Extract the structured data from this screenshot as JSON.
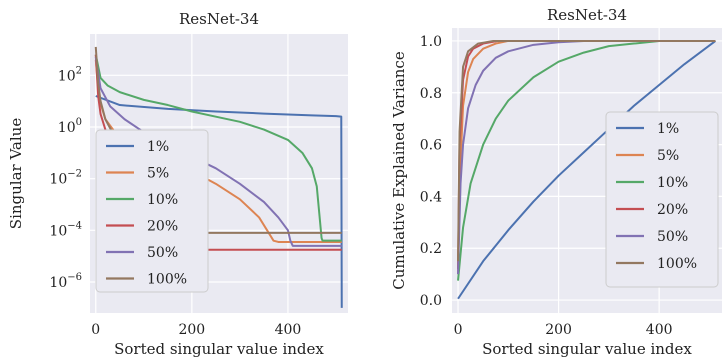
{
  "chart_data": [
    {
      "type": "line",
      "title": "ResNet-34",
      "xlabel": "Sorted singular value index",
      "ylabel": "Singular Value",
      "xlim": [
        -12,
        525
      ],
      "yscale": "log",
      "ylim_log10": [
        -7.2,
        3.6
      ],
      "xticks": [
        0,
        200,
        400
      ],
      "yticks": [
        {
          "base": "10",
          "exp": "2",
          "value": 2
        },
        {
          "base": "10",
          "exp": "0",
          "value": 0
        },
        {
          "base": "10",
          "exp": "−2",
          "value": -2
        },
        {
          "base": "10",
          "exp": "−4",
          "value": -4
        },
        {
          "base": "10",
          "exp": "−6",
          "value": -6
        }
      ],
      "grid": true,
      "legend_placement": "lower-left",
      "series": [
        {
          "name": "1%",
          "color": "#4c72b0",
          "x": [
            0,
            50,
            150,
            250,
            350,
            450,
            500,
            511,
            512
          ],
          "log10_y": [
            1.2,
            0.85,
            0.7,
            0.6,
            0.52,
            0.45,
            0.42,
            0.4,
            -7.0
          ]
        },
        {
          "name": "5%",
          "color": "#dd8452",
          "x": [
            0,
            5,
            10,
            20,
            40,
            80,
            150,
            200,
            250,
            300,
            340,
            360,
            370,
            380,
            512
          ],
          "log10_y": [
            2.6,
            1.5,
            0.9,
            0.3,
            -0.2,
            -0.7,
            -1.3,
            -1.7,
            -2.2,
            -2.8,
            -3.5,
            -4.1,
            -4.4,
            -4.45,
            -4.45
          ]
        },
        {
          "name": "10%",
          "color": "#55a868",
          "x": [
            0,
            10,
            25,
            50,
            100,
            150,
            200,
            250,
            300,
            350,
            400,
            430,
            450,
            460,
            470,
            472,
            512
          ],
          "log10_y": [
            2.8,
            1.9,
            1.6,
            1.35,
            1.05,
            0.85,
            0.6,
            0.4,
            0.2,
            -0.1,
            -0.5,
            -1.0,
            -1.6,
            -2.3,
            -4.3,
            -4.4,
            -4.4
          ]
        },
        {
          "name": "20%",
          "color": "#c44e52",
          "x": [
            0,
            5,
            10,
            20,
            35,
            55,
            80,
            90,
            120,
            512
          ],
          "log10_y": [
            2.8,
            1.2,
            0.5,
            -0.1,
            -0.6,
            -1.5,
            -2.5,
            -4.75,
            -4.75,
            -4.75
          ]
        },
        {
          "name": "50%",
          "color": "#8172b3",
          "x": [
            0,
            10,
            30,
            60,
            100,
            150,
            200,
            250,
            300,
            350,
            380,
            400,
            405,
            410,
            420,
            512
          ],
          "log10_y": [
            2.7,
            1.5,
            0.8,
            0.3,
            -0.2,
            -0.7,
            -1.15,
            -1.6,
            -2.2,
            -2.9,
            -3.5,
            -4.0,
            -4.4,
            -4.6,
            -4.6,
            -4.6
          ]
        },
        {
          "name": "100%",
          "color": "#937860",
          "x": [
            0,
            5,
            10,
            20,
            40,
            60,
            80,
            100,
            105,
            115,
            512
          ],
          "log10_y": [
            3.1,
            1.7,
            1.0,
            0.3,
            -0.4,
            -1.3,
            -2.2,
            -3.0,
            -4.1,
            -4.1,
            -4.1
          ]
        }
      ]
    },
    {
      "type": "line",
      "title": "ResNet-34",
      "xlabel": "Sorted singular value index",
      "ylabel": "Cumulative Explained Variance",
      "xlim": [
        -12,
        525
      ],
      "ylim": [
        -0.05,
        1.05
      ],
      "xticks": [
        0,
        200,
        400
      ],
      "yticks": [
        0.0,
        0.2,
        0.4,
        0.6,
        0.8,
        1.0
      ],
      "grid": true,
      "legend_placement": "lower-right",
      "series": [
        {
          "name": "1%",
          "color": "#4c72b0",
          "x": [
            0,
            50,
            100,
            150,
            200,
            250,
            300,
            350,
            400,
            450,
            512
          ],
          "y": [
            0.005,
            0.15,
            0.27,
            0.38,
            0.48,
            0.57,
            0.66,
            0.75,
            0.83,
            0.91,
            1.0
          ]
        },
        {
          "name": "5%",
          "color": "#dd8452",
          "x": [
            0,
            3,
            10,
            20,
            30,
            50,
            75,
            100,
            150,
            512
          ],
          "y": [
            0.1,
            0.45,
            0.75,
            0.88,
            0.93,
            0.97,
            0.99,
            1.0,
            1.0,
            1.0
          ]
        },
        {
          "name": "10%",
          "color": "#55a868",
          "x": [
            0,
            10,
            25,
            50,
            75,
            100,
            150,
            200,
            250,
            300,
            350,
            400,
            450,
            512
          ],
          "y": [
            0.075,
            0.28,
            0.45,
            0.6,
            0.7,
            0.77,
            0.86,
            0.92,
            0.955,
            0.98,
            0.99,
            1.0,
            1.0,
            1.0
          ]
        },
        {
          "name": "20%",
          "color": "#c44e52",
          "x": [
            0,
            3,
            10,
            20,
            30,
            50,
            80,
            120,
            512
          ],
          "y": [
            0.12,
            0.6,
            0.85,
            0.94,
            0.97,
            0.99,
            1.0,
            1.0,
            1.0
          ]
        },
        {
          "name": "50%",
          "color": "#8172b3",
          "x": [
            0,
            5,
            10,
            20,
            35,
            50,
            75,
            100,
            150,
            200,
            250,
            512
          ],
          "y": [
            0.1,
            0.45,
            0.6,
            0.74,
            0.83,
            0.885,
            0.935,
            0.96,
            0.985,
            0.995,
            1.0,
            1.0
          ]
        },
        {
          "name": "100%",
          "color": "#937860",
          "x": [
            0,
            3,
            10,
            20,
            40,
            70,
            512
          ],
          "y": [
            0.15,
            0.65,
            0.9,
            0.96,
            0.99,
            1.0,
            1.0
          ]
        }
      ]
    }
  ]
}
